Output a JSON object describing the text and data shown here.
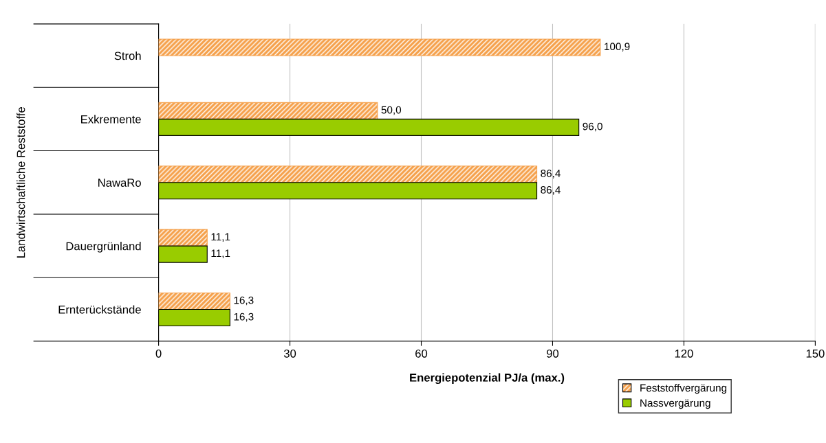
{
  "chart_data": {
    "type": "bar",
    "orientation": "horizontal",
    "xlabel": "Energiepotenzial PJ/a (max.)",
    "ylabel": "Landwirtschaftliche Reststoffe",
    "categories": [
      "Stroh",
      "Exkremente",
      "NawaRo",
      "Dauergrünland",
      "Ernterückstände"
    ],
    "series": [
      {
        "name": "Feststoffvergärung",
        "color": "#f5a04a",
        "values": [
          100.9,
          50.0,
          86.4,
          11.1,
          16.3
        ],
        "value_labels": [
          "100,9",
          "50,0",
          "86,4",
          "11,1",
          "16,3"
        ]
      },
      {
        "name": "Nassvergärung",
        "color": "#99cc00",
        "values": [
          null,
          96.0,
          86.4,
          11.1,
          16.3
        ],
        "value_labels": [
          null,
          "96,0",
          "86,4",
          "11,1",
          "16,3"
        ]
      }
    ],
    "xlim": [
      0,
      150
    ],
    "xticks": [
      0,
      30,
      60,
      90,
      120,
      150
    ],
    "grid": "x",
    "legend": "bottom right"
  }
}
